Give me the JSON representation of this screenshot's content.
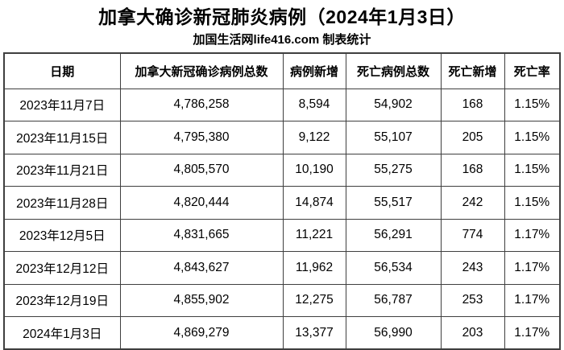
{
  "title": "加拿大确诊新冠肺炎病例（2024年1月3日）",
  "subtitle": "加国生活网life416.com 制表统计",
  "colors": {
    "background": "#ffffff",
    "text": "#000000",
    "border": "#3f3f3f"
  },
  "chart_data": {
    "type": "table",
    "title": "加拿大确诊新冠肺炎病例（2024年1月3日）",
    "subtitle": "加国生活网life416.com 制表统计",
    "columns": [
      "日期",
      "加拿大新冠确诊病例总数",
      "病例新增",
      "死亡病例总数",
      "死亡新增",
      "死亡率"
    ],
    "rows": [
      [
        "2023年11月7日",
        "4,786,258",
        "8,594",
        "54,902",
        "168",
        "1.15%"
      ],
      [
        "2023年11月15日",
        "4,795,380",
        "9,122",
        "55,107",
        "205",
        "1.15%"
      ],
      [
        "2023年11月21日",
        "4,805,570",
        "10,190",
        "55,275",
        "168",
        "1.15%"
      ],
      [
        "2023年11月28日",
        "4,820,444",
        "14,874",
        "55,517",
        "242",
        "1.15%"
      ],
      [
        "2023年12月5日",
        "4,831,665",
        "11,221",
        "56,291",
        "774",
        "1.17%"
      ],
      [
        "2023年12月12日",
        "4,843,627",
        "11,962",
        "56,534",
        "243",
        "1.17%"
      ],
      [
        "2023年12月19日",
        "4,855,902",
        "12,275",
        "56,787",
        "253",
        "1.17%"
      ],
      [
        "2024年1月3日",
        "4,869,279",
        "13,377",
        "56,990",
        "203",
        "1.17%"
      ]
    ]
  }
}
